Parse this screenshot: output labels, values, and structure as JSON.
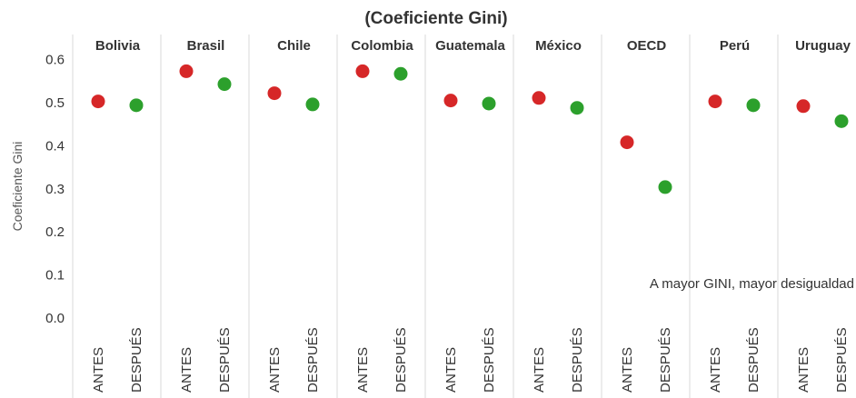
{
  "chart_data": {
    "type": "scatter",
    "title": "(Coeficiente Gini)",
    "ylabel": "Coeficiente Gini",
    "ylim": [
      0,
      0.65
    ],
    "yticks": [
      "0.0",
      "0.1",
      "0.2",
      "0.3",
      "0.4",
      "0.5",
      "0.6"
    ],
    "categories": [
      "ANTES",
      "DESPUÉS"
    ],
    "panels": [
      {
        "name": "Bolivia",
        "values": [
          0.503,
          0.494
        ]
      },
      {
        "name": "Brasil",
        "values": [
          0.573,
          0.543
        ]
      },
      {
        "name": "Chile",
        "values": [
          0.522,
          0.496
        ]
      },
      {
        "name": "Colombia",
        "values": [
          0.573,
          0.567
        ]
      },
      {
        "name": "Guatemala",
        "values": [
          0.505,
          0.498
        ]
      },
      {
        "name": "México",
        "values": [
          0.511,
          0.488
        ]
      },
      {
        "name": "OECD",
        "values": [
          0.408,
          0.304
        ]
      },
      {
        "name": "Perú",
        "values": [
          0.503,
          0.494
        ]
      },
      {
        "name": "Uruguay",
        "values": [
          0.492,
          0.457
        ]
      }
    ],
    "colors": {
      "ANTES": "#d62728",
      "DESPUÉS": "#2ca02c"
    },
    "annotation": "A mayor GINI, mayor desigualdad",
    "grid": false
  }
}
